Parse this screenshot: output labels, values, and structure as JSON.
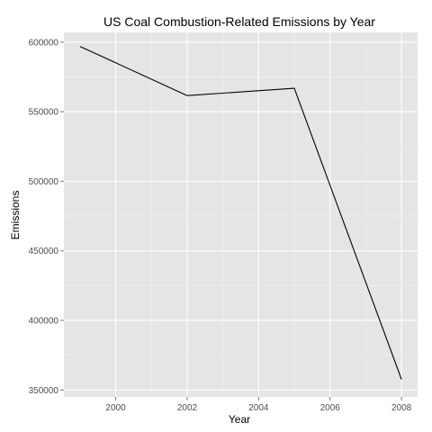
{
  "chart_data": {
    "type": "line",
    "title": "US Coal Combustion-Related Emissions by Year",
    "xlabel": "Year",
    "ylabel": "Emissions",
    "x": [
      1999,
      2002,
      2005,
      2008
    ],
    "series": [
      {
        "values": [
          596900,
          561600,
          566800,
          357600
        ]
      }
    ],
    "xlim": [
      1998.55,
      2008.45
    ],
    "ylim": [
      345000,
      607000
    ],
    "xticks": [
      2000,
      2002,
      2004,
      2006,
      2008
    ],
    "xtick_labels": [
      "2000",
      "2002",
      "2004",
      "2006",
      "2008"
    ],
    "yticks": [
      350000,
      400000,
      450000,
      500000,
      550000,
      600000
    ],
    "ytick_labels": [
      "350000",
      "400000",
      "450000",
      "500000",
      "550000",
      "600000"
    ],
    "grid": true,
    "panel_color": "#e5e5e5",
    "grid_color": "#ffffff",
    "line_color": "#000000"
  }
}
